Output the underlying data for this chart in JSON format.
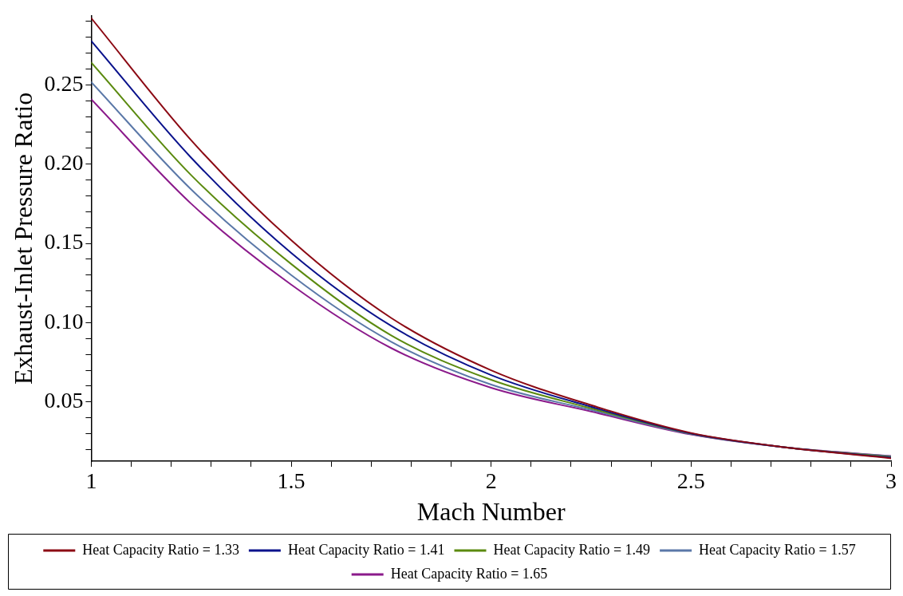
{
  "chart_data": {
    "type": "line",
    "xlabel": "Mach Number",
    "ylabel": "Exhaust-Inlet Pressure Ratio",
    "x": [
      1,
      1.25,
      1.5,
      1.75,
      2,
      2.25,
      2.5,
      2.75,
      3
    ],
    "series": [
      {
        "name": "Heat Capacity Ratio = 1.33",
        "color": "#8c0a14",
        "values": [
          0.292,
          0.215,
          0.152,
          0.103,
          0.07,
          0.048,
          0.0305,
          0.021,
          0.0145
        ]
      },
      {
        "name": "Heat Capacity Ratio = 1.41",
        "color": "#0a128c",
        "values": [
          0.2776,
          0.204,
          0.144,
          0.098,
          0.067,
          0.047,
          0.0302,
          0.021,
          0.015
        ]
      },
      {
        "name": "Heat Capacity Ratio = 1.49",
        "color": "#5b8a0f",
        "values": [
          0.264,
          0.193,
          0.137,
          0.092,
          0.064,
          0.046,
          0.03,
          0.021,
          0.0153
        ]
      },
      {
        "name": "Heat Capacity Ratio = 1.57",
        "color": "#5b78a8",
        "values": [
          0.2517,
          0.184,
          0.13,
          0.088,
          0.061,
          0.045,
          0.0298,
          0.021,
          0.0157
        ]
      },
      {
        "name": "Heat Capacity Ratio = 1.65",
        "color": "#8b1a8b",
        "values": [
          0.2408,
          0.175,
          0.124,
          0.084,
          0.059,
          0.044,
          0.0295,
          0.021,
          0.016
        ]
      }
    ],
    "xlim": [
      1,
      3
    ],
    "xticks": [
      1,
      {
        "value": 1.1,
        "label": null
      },
      {
        "value": 1.2,
        "label": null
      },
      {
        "value": 1.3,
        "label": null
      },
      {
        "value": 1.4,
        "label": null
      },
      1.5,
      {
        "value": 1.6,
        "label": null
      },
      {
        "value": 1.7,
        "label": null
      },
      {
        "value": 1.8,
        "label": null
      },
      {
        "value": 1.9,
        "label": null
      },
      2,
      {
        "value": 2.1,
        "label": null
      },
      {
        "value": 2.2,
        "label": null
      },
      {
        "value": 2.3,
        "label": null
      },
      {
        "value": 2.4,
        "label": null
      },
      2.5,
      {
        "value": 2.6,
        "label": null
      },
      {
        "value": 2.7,
        "label": null
      },
      {
        "value": 2.8,
        "label": null
      },
      {
        "value": 2.9,
        "label": null
      },
      3
    ],
    "ylim": [
      0.0127,
      0.2935
    ],
    "yticks": [
      {
        "value": 0.02,
        "label": null
      },
      {
        "value": 0.03,
        "label": null
      },
      {
        "value": 0.04,
        "label": null
      },
      0.05,
      {
        "value": 0.06,
        "label": null
      },
      {
        "value": 0.07,
        "label": null
      },
      {
        "value": 0.08,
        "label": null
      },
      {
        "value": 0.09,
        "label": null
      },
      {
        "value": 0.1,
        "label": "0.10"
      },
      {
        "value": 0.11,
        "label": null
      },
      {
        "value": 0.12,
        "label": null
      },
      {
        "value": 0.13,
        "label": null
      },
      {
        "value": 0.14,
        "label": null
      },
      0.15,
      {
        "value": 0.16,
        "label": null
      },
      {
        "value": 0.17,
        "label": null
      },
      {
        "value": 0.18,
        "label": null
      },
      {
        "value": 0.19,
        "label": null
      },
      {
        "value": 0.2,
        "label": "0.20"
      },
      {
        "value": 0.21,
        "label": null
      },
      {
        "value": 0.22,
        "label": null
      },
      {
        "value": 0.23,
        "label": null
      },
      {
        "value": 0.24,
        "label": null
      },
      0.25,
      {
        "value": 0.26,
        "label": null
      },
      {
        "value": 0.27,
        "label": null
      },
      {
        "value": 0.28,
        "label": null
      },
      {
        "value": 0.29,
        "label": null
      }
    ],
    "grid": false,
    "legend": "bottom",
    "marker": "none",
    "line_style": "solid"
  }
}
